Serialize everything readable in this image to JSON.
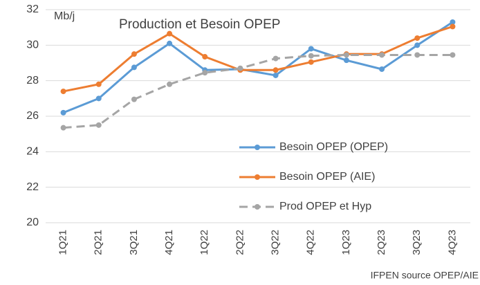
{
  "chart_data": {
    "type": "line",
    "title": "Production et Besoin OPEP",
    "y_label": "Mb/j",
    "source": "IFPEN source OPEP/AIE",
    "categories": [
      "1Q21",
      "2Q21",
      "3Q21",
      "4Q21",
      "1Q22",
      "2Q22",
      "3Q22",
      "4Q22",
      "1Q23",
      "2Q23",
      "3Q23",
      "4Q23"
    ],
    "series": [
      {
        "name": "Besoin OPEP (OPEP)",
        "color": "#5b9bd5",
        "dashed": false,
        "values": [
          26.2,
          27.0,
          28.75,
          30.1,
          28.6,
          28.65,
          28.3,
          29.8,
          29.15,
          28.65,
          30.0,
          31.3
        ]
      },
      {
        "name": "Besoin OPEP (AIE)",
        "color": "#ed7d31",
        "dashed": false,
        "values": [
          27.4,
          27.8,
          29.5,
          30.65,
          29.35,
          28.6,
          28.6,
          29.05,
          29.5,
          29.5,
          30.4,
          31.05
        ]
      },
      {
        "name": "Prod OPEP et Hyp",
        "color": "#a5a5a5",
        "dashed": true,
        "values": [
          25.35,
          25.5,
          26.95,
          27.8,
          28.45,
          28.7,
          29.25,
          29.4,
          29.45,
          29.45,
          29.45,
          29.45
        ]
      }
    ],
    "ylim": [
      20,
      32
    ],
    "yticks": [
      20,
      22,
      24,
      26,
      28,
      30,
      32
    ],
    "grid": true,
    "legend": "lower right"
  }
}
